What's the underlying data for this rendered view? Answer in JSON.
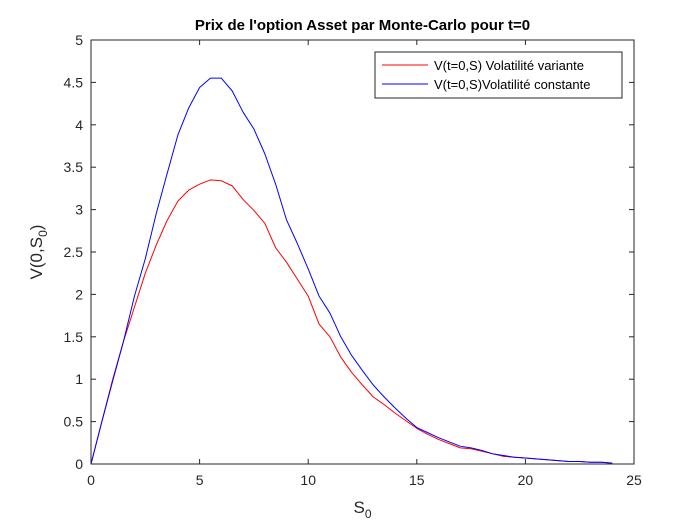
{
  "chart_data": {
    "type": "line",
    "title": "Prix de l'option Asset par Monte-Carlo pour t=0",
    "xlabel": {
      "main": "S",
      "sub": "0"
    },
    "ylabel": {
      "main": "V(0,S",
      "sub": "0",
      "end": ")"
    },
    "xlim": [
      0,
      25
    ],
    "ylim": [
      0,
      5
    ],
    "xticks": [
      "0",
      "5",
      "10",
      "15",
      "20",
      "25"
    ],
    "yticks": [
      "0",
      "0.5",
      "1",
      "1.5",
      "2",
      "2.5",
      "3",
      "3.5",
      "4",
      "4.5",
      "5"
    ],
    "grid": false,
    "legend_position": "top-right",
    "x": [
      0,
      0.5,
      1,
      1.5,
      2,
      2.5,
      3,
      3.5,
      4,
      4.5,
      5,
      5.5,
      6,
      6.5,
      7,
      7.5,
      8,
      8.5,
      9,
      9.5,
      10,
      10.5,
      11,
      11.5,
      12,
      12.5,
      13,
      13.5,
      14,
      14.5,
      15,
      15.5,
      16,
      16.5,
      17,
      17.5,
      18,
      18.5,
      19,
      19.5,
      20,
      20.5,
      21,
      21.5,
      22,
      22.5,
      23,
      23.5,
      24
    ],
    "series": [
      {
        "name": "V(t=0,S) Volatilité variante",
        "color": "#ff0000",
        "values": [
          0,
          0.5,
          1.0,
          1.45,
          1.85,
          2.25,
          2.58,
          2.87,
          3.1,
          3.23,
          3.3,
          3.35,
          3.34,
          3.28,
          3.12,
          2.99,
          2.84,
          2.55,
          2.38,
          2.18,
          1.98,
          1.65,
          1.5,
          1.26,
          1.08,
          0.93,
          0.79,
          0.7,
          0.6,
          0.51,
          0.42,
          0.35,
          0.29,
          0.24,
          0.19,
          0.18,
          0.15,
          0.12,
          0.09,
          0.08,
          0.07,
          0.06,
          0.05,
          0.04,
          0.03,
          0.03,
          0.02,
          0.02,
          0.01
        ]
      },
      {
        "name": "V(t=0,S)Volatilité constante",
        "color": "#0000ff",
        "values": [
          0,
          0.5,
          0.98,
          1.45,
          1.98,
          2.42,
          2.95,
          3.42,
          3.88,
          4.2,
          4.44,
          4.55,
          4.55,
          4.4,
          4.15,
          3.95,
          3.66,
          3.3,
          2.88,
          2.6,
          2.3,
          1.98,
          1.78,
          1.5,
          1.28,
          1.1,
          0.93,
          0.79,
          0.66,
          0.54,
          0.43,
          0.37,
          0.31,
          0.26,
          0.21,
          0.19,
          0.16,
          0.12,
          0.1,
          0.08,
          0.07,
          0.06,
          0.05,
          0.04,
          0.03,
          0.03,
          0.02,
          0.02,
          0.01
        ]
      }
    ]
  }
}
